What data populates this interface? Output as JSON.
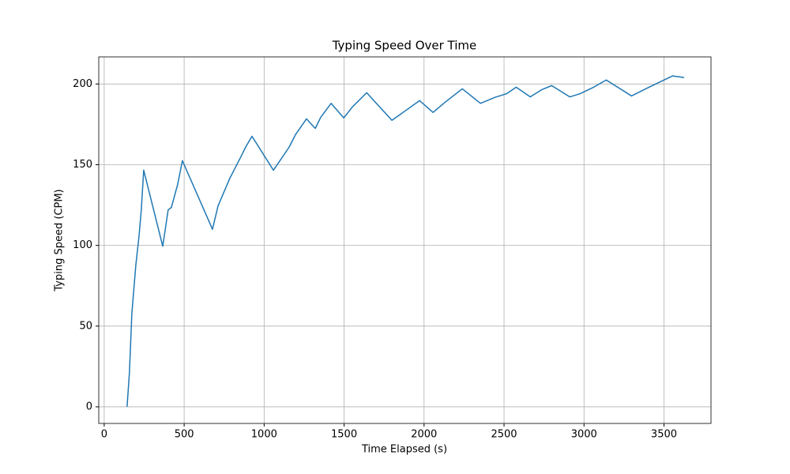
{
  "chart_data": {
    "type": "line",
    "title": "Typing Speed Over Time",
    "x_label": "Time Elapsed (s)",
    "y_label": "Typing Speed (CPM)",
    "x": [
      143,
      158,
      173,
      198,
      217,
      232,
      247,
      366,
      400,
      420,
      460,
      489,
      677,
      712,
      786,
      850,
      885,
      924,
      1058,
      1092,
      1157,
      1196,
      1265,
      1320,
      1354,
      1419,
      1498,
      1552,
      1641,
      1799,
      1849,
      1972,
      2056,
      2135,
      2239,
      2353,
      2442,
      2516,
      2576,
      2664,
      2738,
      2798,
      2911,
      2976,
      3060,
      3139,
      3297,
      3406,
      3554,
      3626
    ],
    "series": [
      {
        "name": "Typing Speed",
        "color": "#1f77b4",
        "values": [
          0,
          21.6,
          58,
          88,
          105,
          122,
          146.6,
          99.5,
          122,
          123.5,
          138,
          152.5,
          110,
          124.5,
          141.7,
          154,
          161,
          167.6,
          146.6,
          151.5,
          161,
          168.6,
          178.4,
          172.5,
          179.4,
          188,
          179,
          185.8,
          194.6,
          177.5,
          181,
          189.7,
          182.4,
          189,
          197,
          188,
          191.7,
          194,
          198,
          192,
          196.6,
          199,
          192,
          194,
          198,
          202.5,
          192.6,
          198,
          205,
          204
        ]
      }
    ],
    "xlim": [
      -34,
      3794
    ],
    "ylim": [
      -10.3,
      216.8
    ],
    "xticks": [
      0,
      500,
      1000,
      1500,
      2000,
      2500,
      3000,
      3500
    ],
    "yticks": [
      0,
      50,
      100,
      150,
      200
    ],
    "grid": true
  }
}
